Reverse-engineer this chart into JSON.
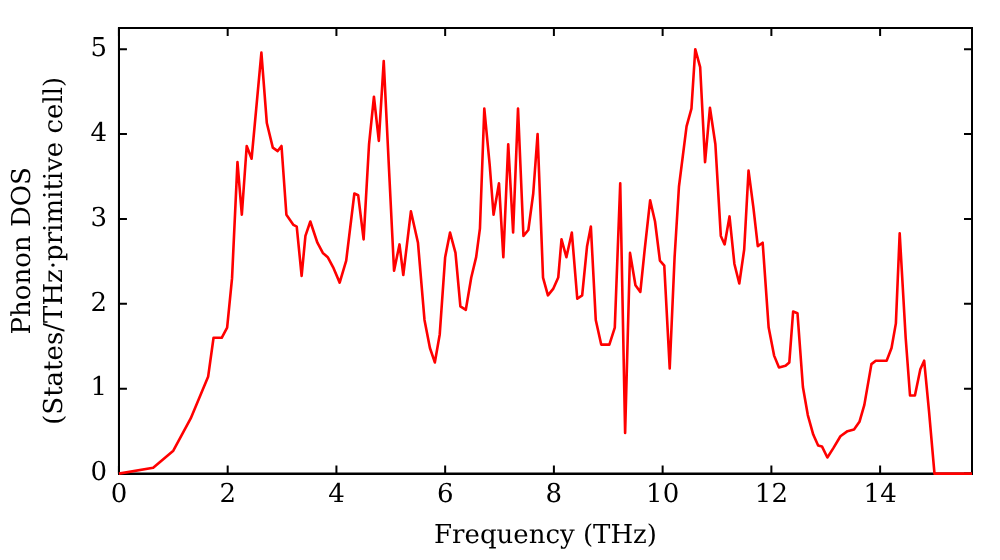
{
  "chart_data": {
    "type": "line",
    "xlabel": "Frequency (THz)",
    "ylabel": "Phonon DOS\n(States/THz·primitive cell)",
    "xlim": [
      0,
      15.69
    ],
    "ylim": [
      0,
      5.25
    ],
    "xticks": [
      0,
      2,
      4,
      6,
      8,
      10,
      12,
      14
    ],
    "yticks": [
      0,
      1,
      2,
      3,
      4,
      5
    ],
    "grid": false,
    "legend": false,
    "marker": "none",
    "line_style": "solid",
    "series": [
      {
        "color": "#ff0000",
        "x": [
          0,
          0.63,
          1.0,
          1.32,
          1.64,
          1.74,
          1.89,
          1.99,
          2.08,
          2.18,
          2.26,
          2.35,
          2.44,
          2.62,
          2.72,
          2.83,
          2.92,
          2.99,
          3.08,
          3.21,
          3.27,
          3.36,
          3.43,
          3.52,
          3.65,
          3.75,
          3.84,
          3.94,
          4.06,
          4.18,
          4.33,
          4.4,
          4.5,
          4.6,
          4.69,
          4.78,
          4.87,
          4.97,
          5.06,
          5.16,
          5.23,
          5.37,
          5.5,
          5.62,
          5.72,
          5.81,
          5.9,
          6.0,
          6.09,
          6.19,
          6.28,
          6.38,
          6.48,
          6.57,
          6.64,
          6.72,
          6.82,
          6.89,
          6.99,
          7.07,
          7.16,
          7.25,
          7.34,
          7.44,
          7.53,
          7.62,
          7.7,
          7.8,
          7.89,
          7.99,
          8.08,
          8.14,
          8.23,
          8.33,
          8.43,
          8.52,
          8.61,
          8.68,
          8.77,
          8.87,
          9.02,
          9.12,
          9.22,
          9.31,
          9.4,
          9.5,
          9.59,
          9.67,
          9.77,
          9.86,
          9.95,
          10.03,
          10.13,
          10.22,
          10.3,
          10.44,
          10.53,
          10.6,
          10.69,
          10.78,
          10.87,
          10.97,
          11.07,
          11.14,
          11.23,
          11.32,
          11.41,
          11.5,
          11.58,
          11.67,
          11.75,
          11.84,
          11.95,
          12.05,
          12.14,
          12.26,
          12.33,
          12.4,
          12.48,
          12.58,
          12.67,
          12.77,
          12.86,
          12.93,
          13.03,
          13.14,
          13.27,
          13.4,
          13.52,
          13.62,
          13.71,
          13.84,
          13.92,
          14.12,
          14.21,
          14.29,
          14.36,
          14.47,
          14.55,
          14.64,
          14.74,
          14.81,
          14.9,
          15.0,
          15.69
        ],
        "values": [
          0,
          0.07,
          0.27,
          0.65,
          1.14,
          1.6,
          1.6,
          1.72,
          2.3,
          3.67,
          3.05,
          3.86,
          3.71,
          4.96,
          4.13,
          3.84,
          3.8,
          3.86,
          3.05,
          2.93,
          2.91,
          2.33,
          2.8,
          2.97,
          2.72,
          2.6,
          2.55,
          2.43,
          2.25,
          2.51,
          3.3,
          3.28,
          2.76,
          3.88,
          4.44,
          3.92,
          4.86,
          3.55,
          2.39,
          2.7,
          2.34,
          3.09,
          2.72,
          1.81,
          1.48,
          1.31,
          1.64,
          2.55,
          2.84,
          2.6,
          1.97,
          1.93,
          2.31,
          2.55,
          2.89,
          4.3,
          3.63,
          3.05,
          3.42,
          2.55,
          3.88,
          2.84,
          4.3,
          2.8,
          2.87,
          3.3,
          4.0,
          2.31,
          2.1,
          2.18,
          2.31,
          2.76,
          2.55,
          2.84,
          2.06,
          2.1,
          2.68,
          2.91,
          1.81,
          1.52,
          1.52,
          1.72,
          3.42,
          0.48,
          2.6,
          2.22,
          2.14,
          2.64,
          3.22,
          2.97,
          2.51,
          2.45,
          1.24,
          2.55,
          3.38,
          4.09,
          4.3,
          5.0,
          4.79,
          3.67,
          4.31,
          3.88,
          2.8,
          2.7,
          3.03,
          2.47,
          2.24,
          2.64,
          3.57,
          3.13,
          2.68,
          2.72,
          1.72,
          1.39,
          1.25,
          1.27,
          1.31,
          1.91,
          1.89,
          1.02,
          0.69,
          0.46,
          0.33,
          0.32,
          0.19,
          0.3,
          0.44,
          0.5,
          0.52,
          0.61,
          0.81,
          1.29,
          1.33,
          1.33,
          1.48,
          1.77,
          2.83,
          1.6,
          0.92,
          0.92,
          1.23,
          1.33,
          0.73,
          0,
          0
        ]
      }
    ]
  }
}
